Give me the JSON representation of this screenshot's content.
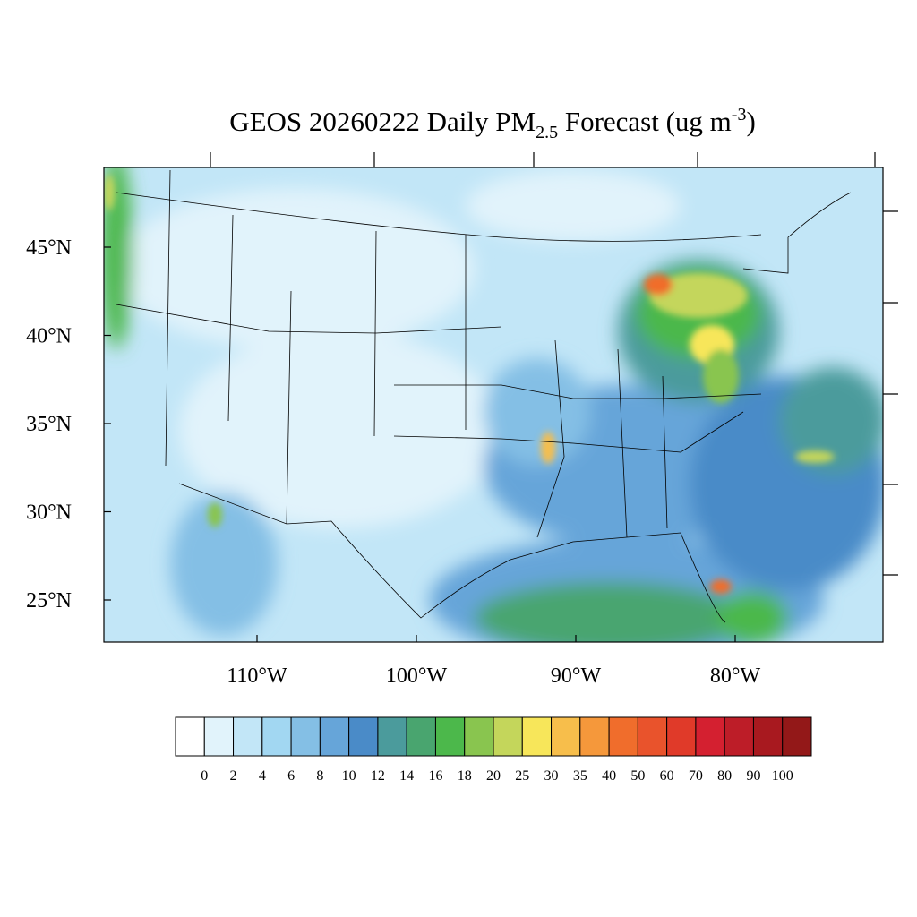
{
  "map": {
    "title": {
      "main": "GEOS 20260222 Daily PM",
      "sub": "2.5",
      "rest": " Forecast (ug m",
      "sup": "-3",
      "end": ")"
    },
    "lat_ticks": [
      {
        "value": 45,
        "label": "45°N"
      },
      {
        "value": 40,
        "label": "40°N"
      },
      {
        "value": 35,
        "label": "35°N"
      },
      {
        "value": 30,
        "label": "30°N"
      },
      {
        "value": 25,
        "label": "25°N"
      }
    ],
    "lon_ticks": [
      {
        "value": -110,
        "label": "110°W"
      },
      {
        "value": -100,
        "label": "100°W"
      },
      {
        "value": -90,
        "label": "90°W"
      },
      {
        "value": -80,
        "label": "80°W"
      }
    ],
    "colorbar": {
      "levels": [
        0,
        2,
        4,
        6,
        8,
        10,
        12,
        14,
        16,
        18,
        20,
        25,
        30,
        35,
        40,
        50,
        60,
        70,
        80,
        90,
        100
      ],
      "colors": [
        "#ffffff",
        "#e1f3fb",
        "#c2e6f7",
        "#a2d7f2",
        "#84bfe5",
        "#66a5d9",
        "#4a8bc8",
        "#4b9b9c",
        "#49a56f",
        "#4cb84b",
        "#89c54f",
        "#c4d65b",
        "#f7e65a",
        "#f7be4b",
        "#f5983b",
        "#f06d2c",
        "#e9532c",
        "#e03a29",
        "#d42030",
        "#bd1d28",
        "#a8191f",
        "#931818"
      ]
    }
  }
}
